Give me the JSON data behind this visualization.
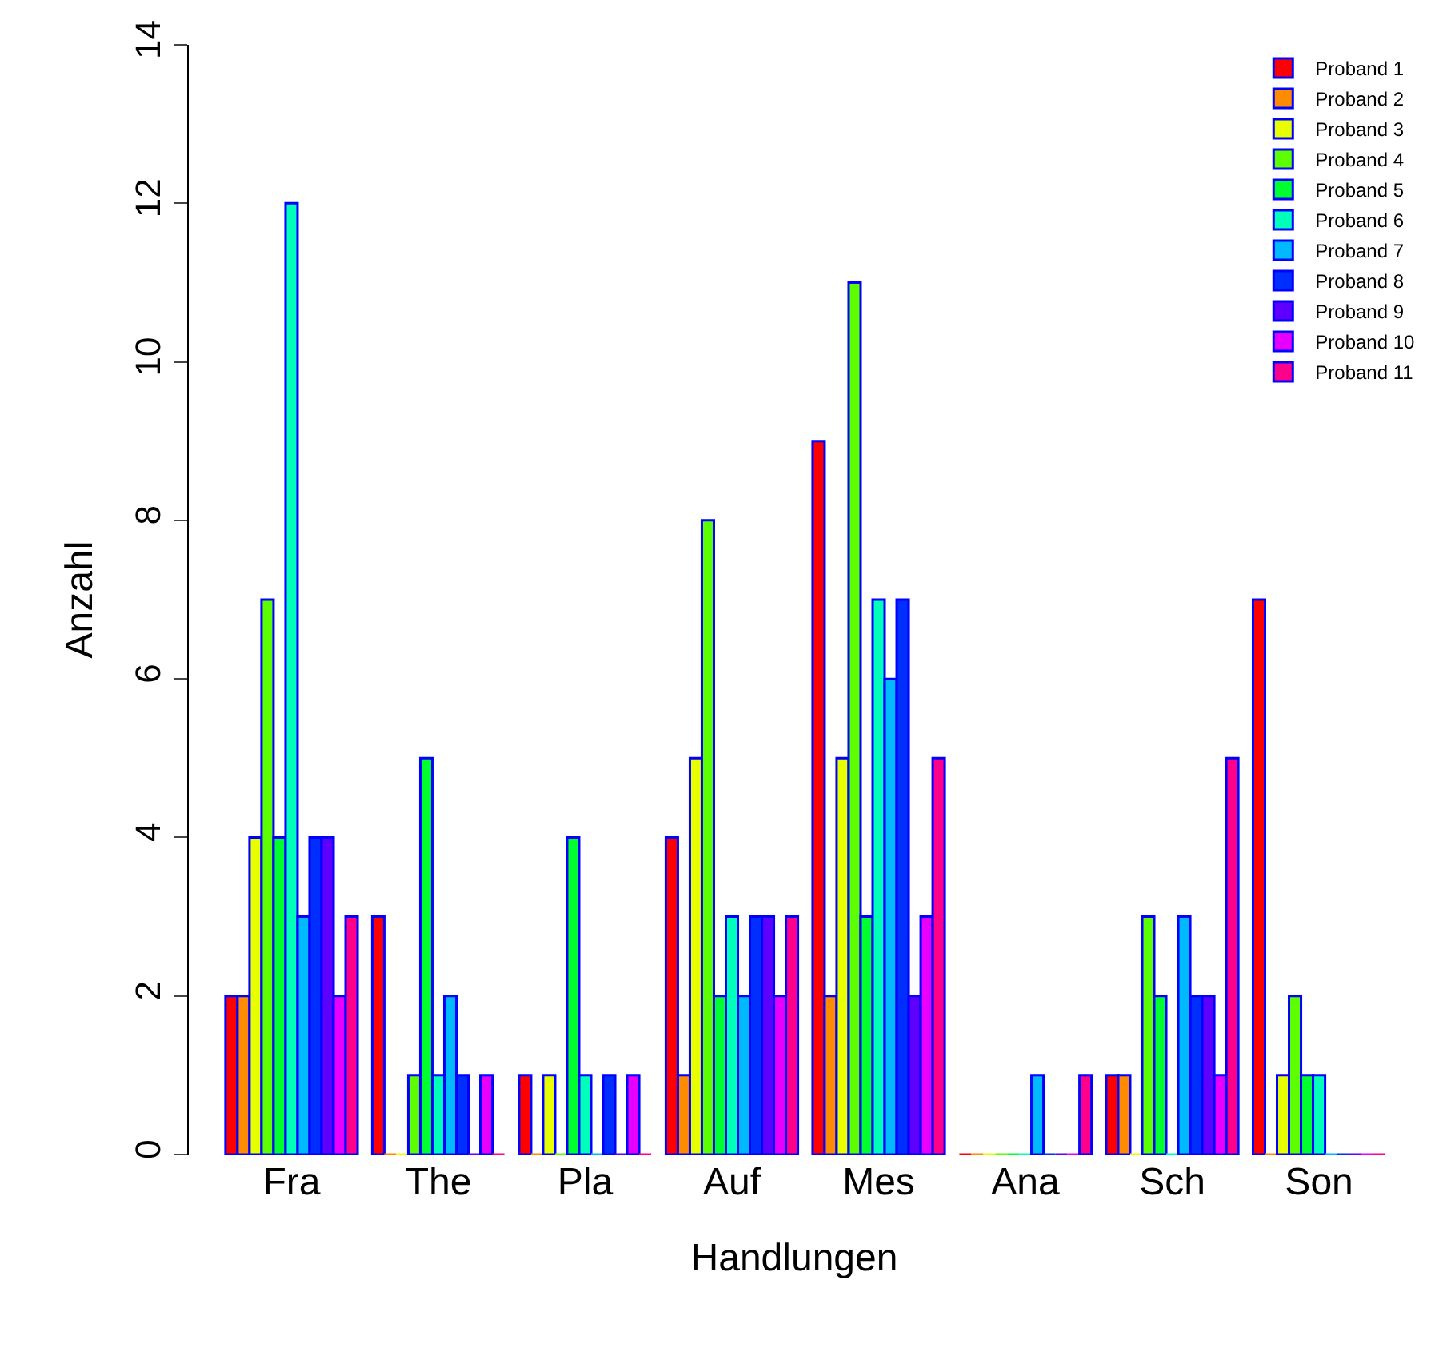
{
  "chart_data": {
    "type": "bar",
    "xlabel": "Handlungen",
    "ylabel": "Anzahl",
    "categories": [
      "Fra",
      "The",
      "Pla",
      "Auf",
      "Mes",
      "Ana",
      "Sch",
      "Son"
    ],
    "series": [
      {
        "name": "Proband 1",
        "color": "#ff0000",
        "values": [
          2,
          3,
          1,
          4,
          9,
          0,
          1,
          7
        ]
      },
      {
        "name": "Proband 2",
        "color": "#ff8b00",
        "values": [
          2,
          0,
          0,
          1,
          2,
          0,
          1,
          0
        ]
      },
      {
        "name": "Proband 3",
        "color": "#e8ff00",
        "values": [
          4,
          0,
          1,
          5,
          5,
          0,
          0,
          1
        ]
      },
      {
        "name": "Proband 4",
        "color": "#5dff00",
        "values": [
          7,
          1,
          0,
          8,
          11,
          0,
          3,
          2
        ]
      },
      {
        "name": "Proband 5",
        "color": "#00ff2e",
        "values": [
          4,
          5,
          4,
          2,
          3,
          0,
          2,
          1
        ]
      },
      {
        "name": "Proband 6",
        "color": "#00ffb9",
        "values": [
          12,
          1,
          1,
          3,
          7,
          0,
          0,
          1
        ]
      },
      {
        "name": "Proband 7",
        "color": "#00b9ff",
        "values": [
          3,
          2,
          0,
          2,
          6,
          1,
          3,
          0
        ]
      },
      {
        "name": "Proband 8",
        "color": "#002eff",
        "values": [
          4,
          1,
          1,
          3,
          7,
          0,
          2,
          0
        ]
      },
      {
        "name": "Proband 9",
        "color": "#5d00ff",
        "values": [
          4,
          0,
          0,
          3,
          2,
          0,
          2,
          0
        ]
      },
      {
        "name": "Proband 10",
        "color": "#e800ff",
        "values": [
          2,
          1,
          1,
          2,
          3,
          0,
          1,
          0
        ]
      },
      {
        "name": "Proband 11",
        "color": "#ff008b",
        "values": [
          3,
          0,
          0,
          3,
          5,
          1,
          5,
          0
        ]
      }
    ],
    "ylim": [
      0,
      14
    ],
    "yticks": [
      0,
      2,
      4,
      6,
      8,
      10,
      12,
      14
    ],
    "legend": "top right"
  }
}
